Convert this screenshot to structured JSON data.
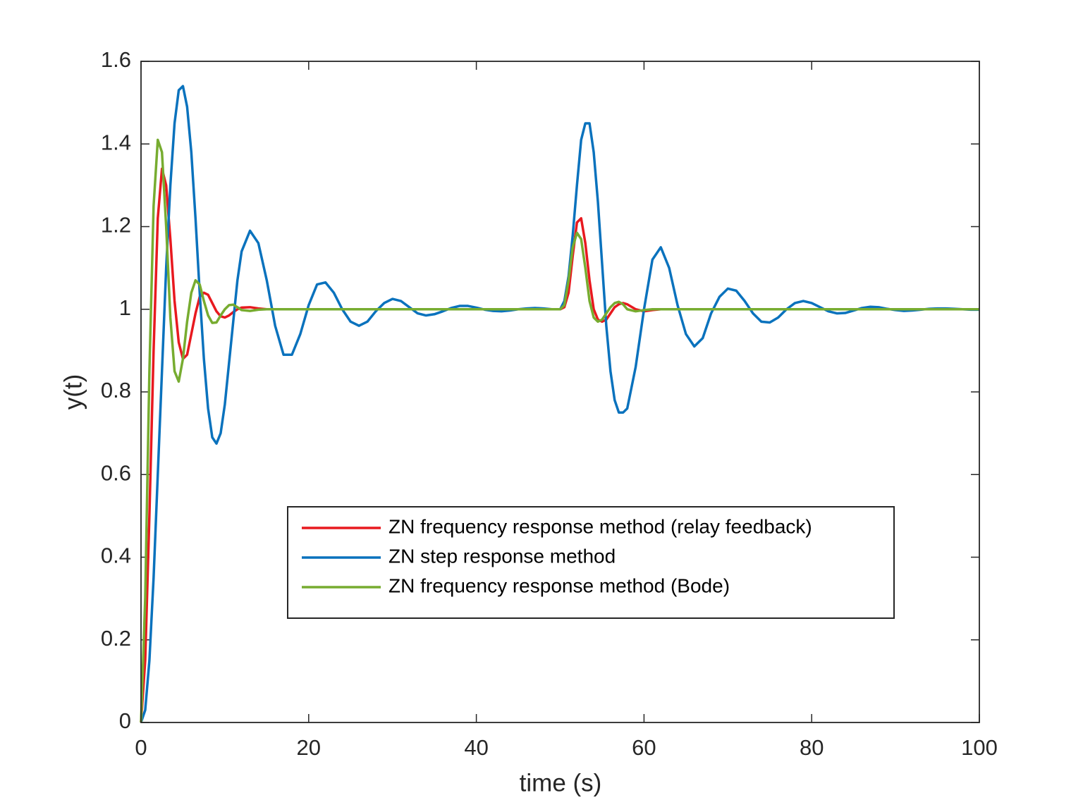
{
  "chart_data": {
    "type": "line",
    "xlabel": "time (s)",
    "ylabel": "y(t)",
    "xlim": [
      0,
      100
    ],
    "xticks": [
      0,
      20,
      40,
      60,
      80,
      100
    ],
    "ylim": [
      0,
      1.6
    ],
    "yticks": [
      0,
      0.2,
      0.4,
      0.6,
      0.8,
      1,
      1.2,
      1.4,
      1.6
    ],
    "grid": false,
    "box": true,
    "x": [
      0,
      0.5,
      1,
      1.5,
      2,
      2.5,
      3,
      3.5,
      4,
      4.5,
      5,
      5.5,
      6,
      6.5,
      7,
      7.5,
      8,
      8.5,
      9,
      9.5,
      10,
      10.5,
      11,
      11.5,
      12,
      13,
      14,
      15,
      16,
      17,
      18,
      19,
      20,
      21,
      22,
      23,
      24,
      25,
      26,
      27,
      28,
      29,
      30,
      31,
      32,
      33,
      34,
      35,
      36,
      37,
      38,
      39,
      40,
      41,
      42,
      43,
      44,
      45,
      46,
      47,
      48,
      49,
      50,
      50.5,
      51,
      51.5,
      52,
      52.5,
      53,
      53.5,
      54,
      54.5,
      55,
      55.5,
      56,
      56.5,
      57,
      57.5,
      58,
      59,
      60,
      61,
      62,
      63,
      64,
      65,
      66,
      67,
      68,
      69,
      70,
      71,
      72,
      73,
      74,
      75,
      76,
      77,
      78,
      79,
      80,
      81,
      82,
      83,
      84,
      85,
      86,
      87,
      88,
      89,
      90,
      91,
      92,
      93,
      94,
      95,
      96,
      97,
      98,
      99,
      100
    ],
    "series": [
      {
        "name": "ZN frequency response method (relay feedback)",
        "color": "#e8191f",
        "values": [
          0,
          0.15,
          0.5,
          0.9,
          1.22,
          1.34,
          1.3,
          1.17,
          1.02,
          0.92,
          0.88,
          0.89,
          0.94,
          0.99,
          1.03,
          1.04,
          1.035,
          1.015,
          0.995,
          0.983,
          0.98,
          0.985,
          0.993,
          1.0,
          1.004,
          1.005,
          1.002,
          1.0,
          1,
          1,
          1,
          1,
          1,
          1,
          1,
          1,
          1,
          1,
          1,
          1,
          1,
          1,
          1,
          1,
          1,
          1,
          1,
          1,
          1,
          1,
          1,
          1,
          1,
          1,
          1,
          1,
          1,
          1,
          1,
          1,
          1,
          1,
          1,
          1.005,
          1.04,
          1.13,
          1.21,
          1.22,
          1.16,
          1.07,
          1.0,
          0.975,
          0.97,
          0.975,
          0.99,
          1.005,
          1.012,
          1.015,
          1.012,
          1.0,
          0.995,
          0.998,
          1,
          1,
          1,
          1,
          1,
          1,
          1,
          1,
          1,
          1,
          1,
          1,
          1,
          1,
          1,
          1,
          1,
          1,
          1,
          1,
          1,
          1,
          1,
          1,
          1,
          1,
          1,
          1,
          1,
          1,
          1,
          1,
          1,
          1,
          1,
          1,
          1,
          1,
          1
        ]
      },
      {
        "name": "ZN step response method",
        "color": "#0a72bd",
        "values": [
          0,
          0.03,
          0.15,
          0.35,
          0.6,
          0.85,
          1.1,
          1.3,
          1.45,
          1.53,
          1.54,
          1.49,
          1.38,
          1.22,
          1.04,
          0.88,
          0.76,
          0.69,
          0.675,
          0.7,
          0.77,
          0.87,
          0.97,
          1.07,
          1.14,
          1.19,
          1.16,
          1.07,
          0.96,
          0.89,
          0.89,
          0.94,
          1.01,
          1.06,
          1.065,
          1.04,
          1.0,
          0.97,
          0.96,
          0.97,
          0.995,
          1.015,
          1.025,
          1.02,
          1.005,
          0.99,
          0.985,
          0.988,
          0.995,
          1.003,
          1.008,
          1.008,
          1.004,
          0.999,
          0.996,
          0.995,
          0.997,
          1.0,
          1.002,
          1.003,
          1.002,
          1.0,
          1.0,
          1.02,
          1.08,
          1.18,
          1.3,
          1.41,
          1.45,
          1.45,
          1.38,
          1.26,
          1.11,
          0.96,
          0.85,
          0.78,
          0.75,
          0.75,
          0.76,
          0.86,
          1.0,
          1.12,
          1.15,
          1.1,
          1.01,
          0.94,
          0.91,
          0.93,
          0.99,
          1.03,
          1.05,
          1.045,
          1.02,
          0.99,
          0.97,
          0.968,
          0.98,
          1.0,
          1.015,
          1.02,
          1.015,
          1.005,
          0.995,
          0.99,
          0.991,
          0.997,
          1.003,
          1.006,
          1.005,
          1.001,
          0.998,
          0.996,
          0.997,
          0.999,
          1.001,
          1.002,
          1.002,
          1.001,
          1.0,
          0.999,
          0.999
        ]
      },
      {
        "name": "ZN frequency response method (Bode)",
        "color": "#77ac30",
        "values": [
          0,
          0.3,
          0.85,
          1.25,
          1.41,
          1.38,
          1.2,
          0.98,
          0.85,
          0.825,
          0.88,
          0.97,
          1.04,
          1.07,
          1.06,
          1.02,
          0.985,
          0.967,
          0.968,
          0.985,
          1.0,
          1.01,
          1.011,
          1.005,
          0.998,
          0.996,
          0.999,
          1,
          1,
          1,
          1,
          1,
          1,
          1,
          1,
          1,
          1,
          1,
          1,
          1,
          1,
          1,
          1,
          1,
          1,
          1,
          1,
          1,
          1,
          1,
          1,
          1,
          1,
          1,
          1,
          1,
          1,
          1,
          1,
          1,
          1,
          1,
          1,
          1.01,
          1.07,
          1.15,
          1.185,
          1.17,
          1.1,
          1.02,
          0.98,
          0.97,
          0.975,
          0.99,
          1.005,
          1.015,
          1.018,
          1.012,
          1.0,
          0.995,
          0.998,
          1,
          1,
          1,
          1,
          1,
          1,
          1,
          1,
          1,
          1,
          1,
          1,
          1,
          1,
          1,
          1,
          1,
          1,
          1,
          1,
          1,
          1,
          1,
          1,
          1,
          1,
          1,
          1,
          1,
          1,
          1,
          1,
          1,
          1,
          1,
          1,
          1,
          1,
          1,
          1
        ]
      }
    ]
  }
}
